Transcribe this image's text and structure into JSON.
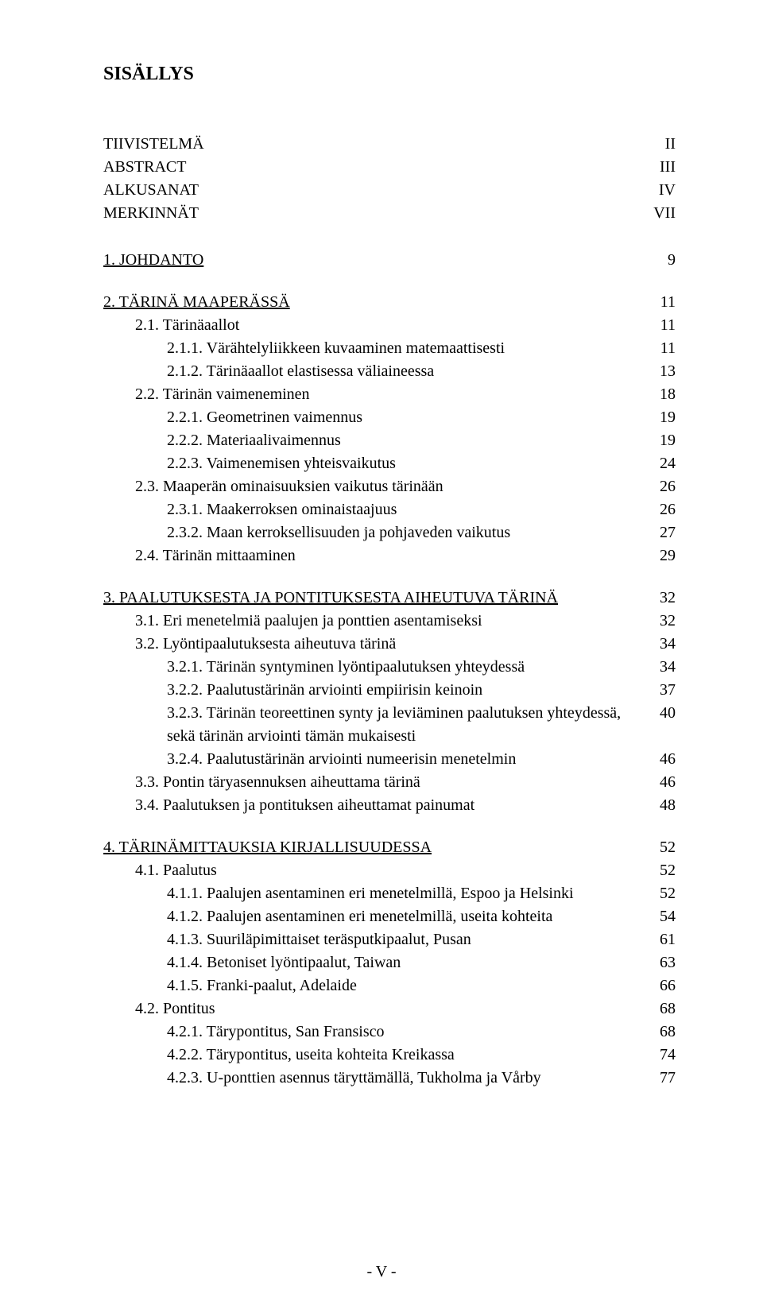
{
  "title": "SISÄLLYS",
  "preliminary": [
    {
      "label": "TIIVISTELMÄ",
      "page": "II"
    },
    {
      "label": "ABSTRACT",
      "page": "III"
    },
    {
      "label": "ALKUSANAT",
      "page": "IV"
    },
    {
      "label": "MERKINNÄT",
      "page": "VII"
    }
  ],
  "sections": [
    {
      "entries": [
        {
          "indent": 0,
          "label": "1.   JOHDANTO",
          "page": "9",
          "underline": true
        }
      ]
    },
    {
      "entries": [
        {
          "indent": 0,
          "label": "2.   TÄRINÄ MAAPERÄSSÄ",
          "page": "11",
          "underline": true
        },
        {
          "indent": 1,
          "label": "2.1.   Tärinäaallot",
          "page": "11"
        },
        {
          "indent": 2,
          "label": "2.1.1.   Värähtelyliikkeen kuvaaminen matemaattisesti",
          "page": "11"
        },
        {
          "indent": 2,
          "label": "2.1.2.   Tärinäaallot elastisessa väliaineessa",
          "page": "13"
        },
        {
          "indent": 1,
          "label": "2.2.   Tärinän vaimeneminen",
          "page": "18"
        },
        {
          "indent": 2,
          "label": "2.2.1.   Geometrinen vaimennus",
          "page": "19"
        },
        {
          "indent": 2,
          "label": "2.2.2.   Materiaalivaimennus",
          "page": "19"
        },
        {
          "indent": 2,
          "label": "2.2.3.   Vaimenemisen yhteisvaikutus",
          "page": "24"
        },
        {
          "indent": 1,
          "label": "2.3.   Maaperän ominaisuuksien vaikutus tärinään",
          "page": "26"
        },
        {
          "indent": 2,
          "label": "2.3.1.   Maakerroksen ominaistaajuus",
          "page": "26"
        },
        {
          "indent": 2,
          "label": "2.3.2.   Maan kerroksellisuuden ja pohjaveden vaikutus",
          "page": "27"
        },
        {
          "indent": 1,
          "label": "2.4.   Tärinän mittaaminen",
          "page": "29"
        }
      ]
    },
    {
      "entries": [
        {
          "indent": 0,
          "label": "3.   PAALUTUKSESTA JA PONTITUKSESTA AIHEUTUVA TÄRINÄ",
          "page": "32",
          "underline": true
        },
        {
          "indent": 1,
          "label": "3.1.   Eri menetelmiä paalujen ja ponttien asentamiseksi",
          "page": "32"
        },
        {
          "indent": 1,
          "label": "3.2.   Lyöntipaalutuksesta aiheutuva tärinä",
          "page": "34"
        },
        {
          "indent": 2,
          "label": "3.2.1.   Tärinän syntyminen lyöntipaalutuksen yhteydessä",
          "page": "34"
        },
        {
          "indent": 2,
          "label": "3.2.2.   Paalutustärinän arviointi empiirisin keinoin",
          "page": "37"
        },
        {
          "indent": 2,
          "label": "3.2.3.   Tärinän teoreettinen synty ja leviäminen paalutuksen yhteydessä, sekä tärinän arviointi tämän mukaisesti",
          "page": "40"
        },
        {
          "indent": 2,
          "label": "3.2.4.   Paalutustärinän arviointi numeerisin menetelmin",
          "page": "46"
        },
        {
          "indent": 1,
          "label": "3.3.   Pontin täryasennuksen aiheuttama tärinä",
          "page": "46"
        },
        {
          "indent": 1,
          "label": "3.4.   Paalutuksen ja pontituksen aiheuttamat painumat",
          "page": "48"
        }
      ]
    },
    {
      "entries": [
        {
          "indent": 0,
          "label": "4.   TÄRINÄMITTAUKSIA KIRJALLISUUDESSA",
          "page": "52",
          "underline": true
        },
        {
          "indent": 1,
          "label": "4.1.   Paalutus",
          "page": "52"
        },
        {
          "indent": 2,
          "label": "4.1.1.   Paalujen asentaminen eri menetelmillä, Espoo ja Helsinki",
          "page": "52"
        },
        {
          "indent": 2,
          "label": "4.1.2.   Paalujen asentaminen eri menetelmillä, useita kohteita",
          "page": "54"
        },
        {
          "indent": 2,
          "label": "4.1.3.   Suuriläpimittaiset teräsputkipaalut, Pusan",
          "page": "61"
        },
        {
          "indent": 2,
          "label": "4.1.4.   Betoniset lyöntipaalut, Taiwan",
          "page": "63"
        },
        {
          "indent": 2,
          "label": "4.1.5.   Franki-paalut, Adelaide",
          "page": "66"
        },
        {
          "indent": 1,
          "label": "4.2.   Pontitus",
          "page": "68"
        },
        {
          "indent": 2,
          "label": "4.2.1.   Tärypontitus, San Fransisco",
          "page": "68"
        },
        {
          "indent": 2,
          "label": "4.2.2.   Tärypontitus, useita kohteita Kreikassa",
          "page": "74"
        },
        {
          "indent": 2,
          "label": "4.2.3.   U-ponttien asennus täryttämällä, Tukholma ja Vårby",
          "page": "77"
        }
      ]
    }
  ],
  "footer": "- V -"
}
